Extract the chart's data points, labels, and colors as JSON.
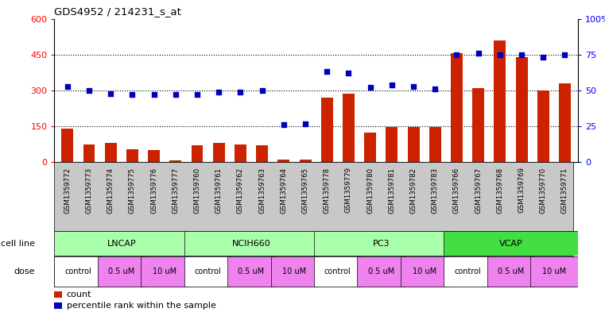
{
  "title": "GDS4952 / 214231_s_at",
  "samples": [
    "GSM1359772",
    "GSM1359773",
    "GSM1359774",
    "GSM1359775",
    "GSM1359776",
    "GSM1359777",
    "GSM1359760",
    "GSM1359761",
    "GSM1359762",
    "GSM1359763",
    "GSM1359764",
    "GSM1359765",
    "GSM1359778",
    "GSM1359779",
    "GSM1359780",
    "GSM1359781",
    "GSM1359782",
    "GSM1359783",
    "GSM1359766",
    "GSM1359767",
    "GSM1359768",
    "GSM1359769",
    "GSM1359770",
    "GSM1359771"
  ],
  "counts": [
    140,
    75,
    80,
    55,
    50,
    8,
    70,
    80,
    75,
    70,
    12,
    12,
    270,
    285,
    125,
    148,
    148,
    148,
    455,
    310,
    510,
    440,
    300,
    330
  ],
  "percentile_ranks_pct": [
    53,
    50,
    48,
    47,
    47,
    47,
    47,
    49,
    49,
    50,
    26,
    27,
    63,
    62,
    52,
    54,
    53,
    51,
    75,
    76,
    75,
    75,
    73,
    75
  ],
  "cell_line_groups": [
    {
      "name": "LNCAP",
      "start": 0,
      "end": 6,
      "color": "#AAFFAA"
    },
    {
      "name": "NCIH660",
      "start": 6,
      "end": 12,
      "color": "#AAFFAA"
    },
    {
      "name": "PC3",
      "start": 12,
      "end": 18,
      "color": "#AAFFAA"
    },
    {
      "name": "VCAP",
      "start": 18,
      "end": 24,
      "color": "#44DD44"
    }
  ],
  "dose_blocks": [
    {
      "label": "control",
      "start": 0,
      "end": 2,
      "color": "#FFFFFF"
    },
    {
      "label": "0.5 uM",
      "start": 2,
      "end": 4,
      "color": "#EE82EE"
    },
    {
      "label": "10 uM",
      "start": 4,
      "end": 6,
      "color": "#EE82EE"
    },
    {
      "label": "control",
      "start": 6,
      "end": 8,
      "color": "#FFFFFF"
    },
    {
      "label": "0.5 uM",
      "start": 8,
      "end": 10,
      "color": "#EE82EE"
    },
    {
      "label": "10 uM",
      "start": 10,
      "end": 12,
      "color": "#EE82EE"
    },
    {
      "label": "control",
      "start": 12,
      "end": 14,
      "color": "#FFFFFF"
    },
    {
      "label": "0.5 uM",
      "start": 14,
      "end": 16,
      "color": "#EE82EE"
    },
    {
      "label": "10 uM",
      "start": 16,
      "end": 18,
      "color": "#EE82EE"
    },
    {
      "label": "control",
      "start": 18,
      "end": 20,
      "color": "#FFFFFF"
    },
    {
      "label": "0.5 uM",
      "start": 20,
      "end": 22,
      "color": "#EE82EE"
    },
    {
      "label": "10 uM",
      "start": 22,
      "end": 24,
      "color": "#EE82EE"
    }
  ],
  "bar_color": "#CC2200",
  "dot_color": "#0000BB",
  "left_ylim": [
    0,
    600
  ],
  "right_ylim": [
    0,
    100
  ],
  "left_yticks": [
    0,
    150,
    300,
    450,
    600
  ],
  "right_yticks": [
    0,
    25,
    50,
    75,
    100
  ],
  "xtick_bg_color": "#C8C8C8",
  "cell_line_border_color": "#888888",
  "dose_border_color": "#888888"
}
